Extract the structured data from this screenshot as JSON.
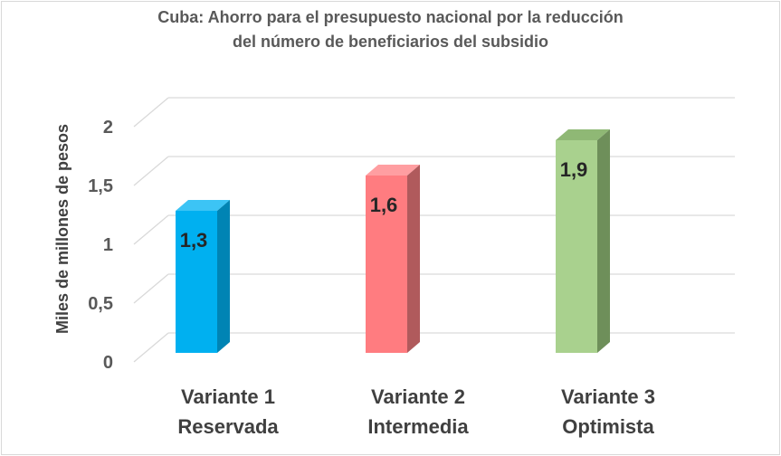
{
  "chart_data": {
    "type": "bar",
    "title_line1": "Cuba: Ahorro para el presupuesto nacional por la reducción",
    "title_line2": "del número de beneficiarios del subsidio",
    "ylabel": "Miles de millones de pesos",
    "xlabel": "",
    "ylim": [
      0,
      2
    ],
    "y_ticks": [
      "0",
      "0,5",
      "1",
      "1,5",
      "2"
    ],
    "y_tick_values": [
      0,
      0.5,
      1,
      1.5,
      2
    ],
    "grid": true,
    "categories": [
      {
        "line1": "Variante 1",
        "line2": "Reservada"
      },
      {
        "line1": "Variante 2",
        "line2": "Intermedia"
      },
      {
        "line1": "Variante 3",
        "line2": "Optimista"
      }
    ],
    "values": [
      1.3,
      1.6,
      1.9
    ],
    "data_labels": [
      "1,3",
      "1,6",
      "1,9"
    ],
    "colors": [
      {
        "front": "#00b0f0",
        "side": "#0084b4",
        "top": "#3cc4f5"
      },
      {
        "front": "#ff7c80",
        "side": "#b05a5c",
        "top": "#ff9ea1"
      },
      {
        "front": "#a9d18e",
        "side": "#6e8f5a",
        "top": "#8fb875"
      }
    ]
  }
}
